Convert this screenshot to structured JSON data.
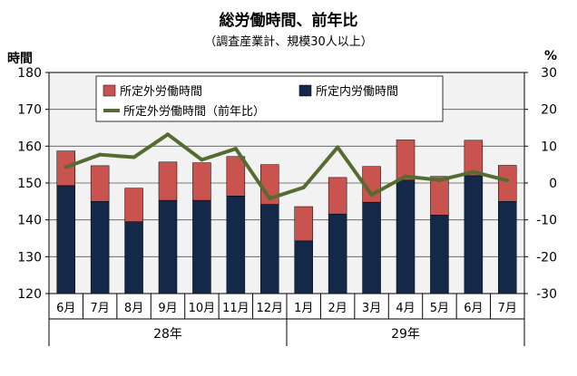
{
  "chart_data": {
    "type": "bar",
    "title": "総労働時間、前年比",
    "subtitle": "（調査産業計、規模30人以上）",
    "ylabel": "時間",
    "y2label": "%",
    "ylim": [
      120,
      180
    ],
    "yticks": [
      120,
      130,
      140,
      150,
      160,
      170,
      180
    ],
    "y2lim": [
      -30,
      30
    ],
    "y2ticks": [
      -30,
      -20,
      -10,
      0,
      10,
      20,
      30
    ],
    "grid": true,
    "legend_position": "top",
    "categories": [
      "6月",
      "7月",
      "8月",
      "9月",
      "10月",
      "11月",
      "12月",
      "1月",
      "2月",
      "3月",
      "4月",
      "5月",
      "6月",
      "7月"
    ],
    "year_groups": [
      {
        "label": "28年",
        "start": 0,
        "end": 6
      },
      {
        "label": "29年",
        "start": 7,
        "end": 13
      }
    ],
    "series": [
      {
        "name": "所定内労働時間",
        "kind": "bar",
        "color": "#14284a",
        "values": [
          149.3,
          145.0,
          139.5,
          145.3,
          145.3,
          146.5,
          144.2,
          134.3,
          141.6,
          144.8,
          150.8,
          141.3,
          152.0,
          145.0
        ]
      },
      {
        "name": "所定外労働時間",
        "kind": "bar",
        "color": "#c9534f",
        "values": [
          9.4,
          9.7,
          9.1,
          10.4,
          10.2,
          10.7,
          10.8,
          9.3,
          9.9,
          9.7,
          10.9,
          10.5,
          9.6,
          9.8
        ]
      },
      {
        "name": "所定外労働時間（前年比）",
        "kind": "line",
        "axis": "right",
        "color": "#556b2f",
        "values": [
          4.3,
          7.7,
          7.0,
          13.2,
          6.3,
          9.3,
          -4.2,
          -1.2,
          9.7,
          -3.2,
          1.8,
          0.8,
          3.0,
          0.7
        ]
      }
    ]
  }
}
